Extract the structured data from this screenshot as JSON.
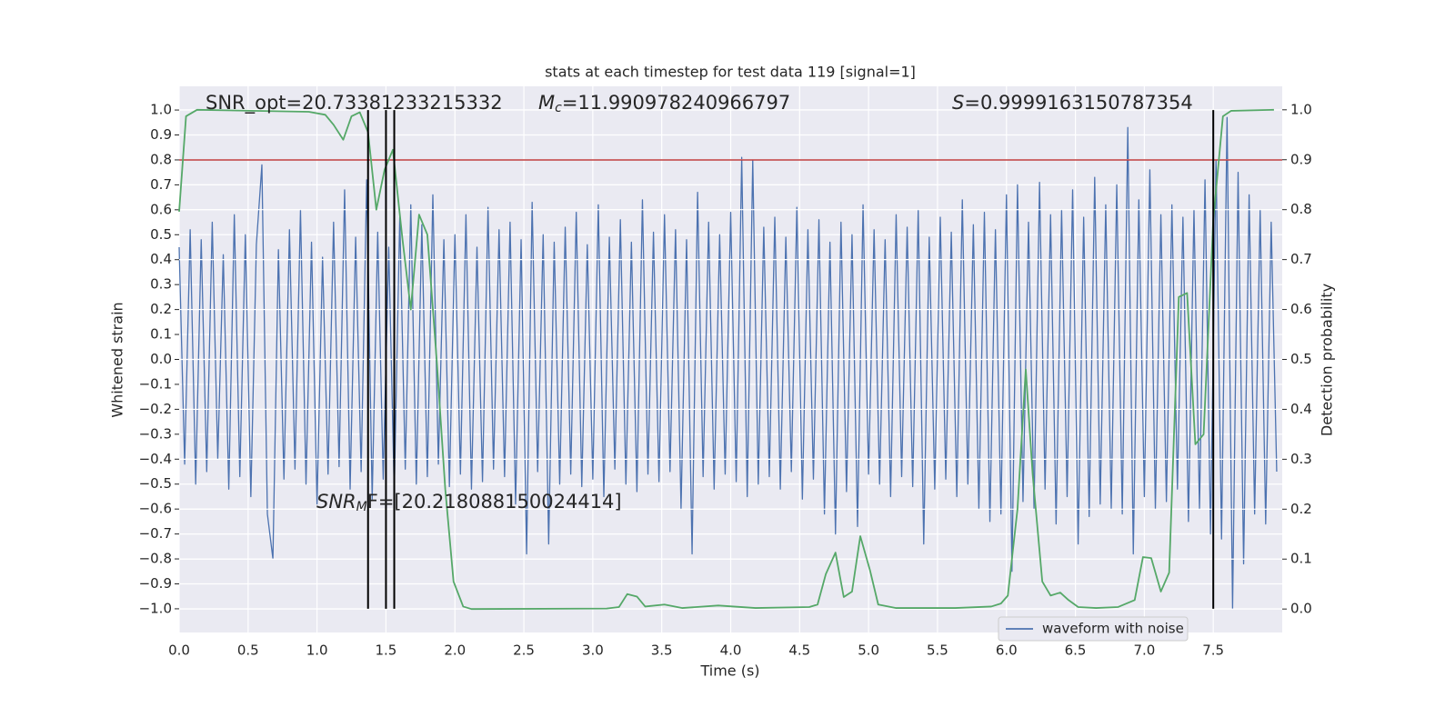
{
  "chart_data": {
    "type": "line",
    "title": "stats at each timestep for test data 119 [signal=1]",
    "xlabel": "Time (s)",
    "ylabel": "Whitened strain",
    "y2label": "Detection probability",
    "xlim": [
      0,
      8.0
    ],
    "ylim": [
      -1.095,
      1.095
    ],
    "y2lim": [
      -0.047,
      1.047
    ],
    "grid": true,
    "legend": "lower right",
    "xticks": [
      {
        "value": 0,
        "label": "0.0"
      },
      {
        "value": 0.5,
        "label": "0.5"
      },
      {
        "value": 1,
        "label": "1.0"
      },
      {
        "value": 1.5,
        "label": "1.5"
      },
      {
        "value": 2,
        "label": "2.0"
      },
      {
        "value": 2.5,
        "label": "2.5"
      },
      {
        "value": 3,
        "label": "3.0"
      },
      {
        "value": 3.5,
        "label": "3.5"
      },
      {
        "value": 4,
        "label": "4.0"
      },
      {
        "value": 4.5,
        "label": "4.5"
      },
      {
        "value": 5,
        "label": "5.0"
      },
      {
        "value": 5.5,
        "label": "5.5"
      },
      {
        "value": 6,
        "label": "6.0"
      },
      {
        "value": 6.5,
        "label": "6.5"
      },
      {
        "value": 7,
        "label": "7.0"
      },
      {
        "value": 7.5,
        "label": "7.5"
      }
    ],
    "yticks": [
      {
        "value": -1,
        "label": "−1.0"
      },
      {
        "value": -0.9,
        "label": "−0.9"
      },
      {
        "value": -0.8,
        "label": "−0.8"
      },
      {
        "value": -0.7,
        "label": "−0.7"
      },
      {
        "value": -0.6,
        "label": "−0.6"
      },
      {
        "value": -0.5,
        "label": "−0.5"
      },
      {
        "value": -0.4,
        "label": "−0.4"
      },
      {
        "value": -0.3,
        "label": "−0.3"
      },
      {
        "value": -0.2,
        "label": "−0.2"
      },
      {
        "value": -0.1,
        "label": "−0.1"
      },
      {
        "value": 0,
        "label": "0.0"
      },
      {
        "value": 0.1,
        "label": "0.1"
      },
      {
        "value": 0.2,
        "label": "0.2"
      },
      {
        "value": 0.3,
        "label": "0.3"
      },
      {
        "value": 0.4,
        "label": "0.4"
      },
      {
        "value": 0.5,
        "label": "0.5"
      },
      {
        "value": 0.6,
        "label": "0.6"
      },
      {
        "value": 0.7,
        "label": "0.7"
      },
      {
        "value": 0.8,
        "label": "0.8"
      },
      {
        "value": 0.9,
        "label": "0.9"
      },
      {
        "value": 1,
        "label": "1.0"
      }
    ],
    "y2ticks": [
      {
        "value": 0,
        "label": "0.0"
      },
      {
        "value": 0.1,
        "label": "0.1"
      },
      {
        "value": 0.2,
        "label": "0.2"
      },
      {
        "value": 0.3,
        "label": "0.3"
      },
      {
        "value": 0.4,
        "label": "0.4"
      },
      {
        "value": 0.5,
        "label": "0.5"
      },
      {
        "value": 0.6,
        "label": "0.6"
      },
      {
        "value": 0.7,
        "label": "0.7"
      },
      {
        "value": 0.8,
        "label": "0.8"
      },
      {
        "value": 0.9,
        "label": "0.9"
      },
      {
        "value": 1,
        "label": "1.0"
      }
    ],
    "hlines": [
      {
        "value": 0.8,
        "color": "#c03d3e"
      }
    ],
    "vlines": {
      "x": [
        1.37,
        1.5,
        1.56,
        7.5
      ],
      "range": [
        -1,
        1
      ],
      "color": "#000000"
    },
    "annotations": [
      {
        "text": "SNR_opt=20.73381233215332"
      },
      {
        "symbol": "M",
        "subscript": "c",
        "text": "=11.990978240966797"
      },
      {
        "symbol": "S",
        "text": "=0.9999163150787354"
      },
      {
        "symbol": "SNR",
        "subscript": "M",
        "text": "F=[20.218088150024414]"
      }
    ],
    "series": [
      {
        "name": "waveform with noise",
        "color": "#4c72b0",
        "axis": "y",
        "x": [
          0,
          0.04,
          0.08,
          0.12,
          0.16,
          0.2,
          0.24,
          0.28,
          0.32,
          0.36,
          0.4,
          0.44,
          0.48,
          0.52,
          0.56,
          0.6,
          0.64,
          0.68,
          0.72,
          0.76,
          0.8,
          0.84,
          0.88,
          0.92,
          0.96,
          1,
          1.04,
          1.08,
          1.12,
          1.16,
          1.2,
          1.24,
          1.28,
          1.32,
          1.36,
          1.4,
          1.44,
          1.48,
          1.52,
          1.56,
          1.6,
          1.64,
          1.68,
          1.72,
          1.76,
          1.8,
          1.84,
          1.88,
          1.92,
          1.96,
          2,
          2.04,
          2.08,
          2.12,
          2.16,
          2.2,
          2.24,
          2.28,
          2.32,
          2.36,
          2.4,
          2.44,
          2.48,
          2.52,
          2.56,
          2.6,
          2.64,
          2.68,
          2.72,
          2.76,
          2.8,
          2.84,
          2.88,
          2.92,
          2.96,
          3,
          3.04,
          3.08,
          3.12,
          3.16,
          3.2,
          3.24,
          3.28,
          3.32,
          3.36,
          3.4,
          3.44,
          3.48,
          3.52,
          3.56,
          3.6,
          3.64,
          3.68,
          3.72,
          3.76,
          3.8,
          3.84,
          3.88,
          3.92,
          3.96,
          4,
          4.04,
          4.08,
          4.12,
          4.16,
          4.2,
          4.24,
          4.28,
          4.32,
          4.36,
          4.4,
          4.44,
          4.48,
          4.52,
          4.56,
          4.6,
          4.64,
          4.68,
          4.72,
          4.76,
          4.8,
          4.84,
          4.88,
          4.92,
          4.96,
          5,
          5.04,
          5.08,
          5.12,
          5.16,
          5.2,
          5.24,
          5.28,
          5.32,
          5.36,
          5.4,
          5.44,
          5.48,
          5.52,
          5.56,
          5.6,
          5.64,
          5.68,
          5.72,
          5.76,
          5.8,
          5.84,
          5.88,
          5.92,
          5.96,
          6,
          6.04,
          6.08,
          6.12,
          6.16,
          6.2,
          6.24,
          6.28,
          6.32,
          6.36,
          6.4,
          6.44,
          6.48,
          6.52,
          6.56,
          6.6,
          6.64,
          6.68,
          6.72,
          6.76,
          6.8,
          6.84,
          6.88,
          6.92,
          6.96,
          7,
          7.04,
          7.08,
          7.12,
          7.16,
          7.2,
          7.24,
          7.28,
          7.32,
          7.36,
          7.4,
          7.44,
          7.48,
          7.52,
          7.56,
          7.6,
          7.64,
          7.68,
          7.72,
          7.76,
          7.8,
          7.84,
          7.88,
          7.92,
          7.96
        ],
        "values": [
          0.45,
          -0.42,
          0.52,
          -0.5,
          0.48,
          -0.45,
          0.55,
          -0.4,
          0.42,
          -0.52,
          0.58,
          -0.47,
          0.5,
          -0.55,
          0.46,
          0.78,
          -0.62,
          -0.8,
          0.44,
          -0.48,
          0.52,
          -0.44,
          0.6,
          -0.5,
          0.47,
          -0.58,
          0.41,
          -0.46,
          0.55,
          -0.43,
          0.68,
          -0.52,
          0.49,
          -0.45,
          0.72,
          -0.56,
          0.51,
          -0.48,
          0.45,
          -0.53,
          0.57,
          -0.44,
          0.62,
          -0.5,
          0.54,
          -0.47,
          0.66,
          -0.42,
          0.48,
          -0.51,
          0.5,
          -0.46,
          0.58,
          -0.52,
          0.45,
          -0.49,
          0.61,
          -0.44,
          0.52,
          -0.47,
          0.55,
          -0.58,
          0.48,
          -0.78,
          0.63,
          -0.45,
          0.5,
          -0.74,
          0.47,
          -0.5,
          0.53,
          -0.46,
          0.59,
          -0.51,
          0.46,
          -0.48,
          0.62,
          -0.55,
          0.49,
          -0.44,
          0.56,
          -0.5,
          0.47,
          -0.53,
          0.64,
          -0.46,
          0.51,
          -0.49,
          0.58,
          -0.45,
          0.52,
          -0.6,
          0.48,
          -0.78,
          0.67,
          -0.47,
          0.55,
          -0.52,
          0.5,
          -0.46,
          0.59,
          -0.49,
          0.81,
          -0.55,
          0.8,
          -0.5,
          0.53,
          -0.47,
          0.57,
          -0.52,
          0.49,
          -0.45,
          0.61,
          -0.56,
          0.52,
          -0.48,
          0.56,
          -0.62,
          0.47,
          -0.7,
          0.55,
          -0.53,
          0.5,
          -0.67,
          0.62,
          -0.46,
          0.52,
          -0.5,
          0.48,
          -0.55,
          0.58,
          -0.47,
          0.53,
          -0.51,
          0.6,
          -0.74,
          0.49,
          -0.52,
          0.57,
          -0.48,
          0.51,
          -0.55,
          0.64,
          -0.5,
          0.54,
          -0.6,
          0.59,
          -0.65,
          0.52,
          -0.62,
          0.66,
          -0.85,
          0.7,
          -0.57,
          0.55,
          -0.6,
          0.71,
          -0.52,
          0.58,
          -0.66,
          0.6,
          -0.55,
          0.68,
          -0.74,
          0.57,
          -0.63,
          0.73,
          -0.58,
          0.62,
          -0.6,
          0.7,
          -0.62,
          0.93,
          -0.78,
          0.64,
          -0.55,
          0.76,
          -0.6,
          0.58,
          -0.57,
          0.62,
          -0.52,
          0.57,
          -0.65,
          0.6,
          -0.6,
          0.72,
          -0.7,
          0.8,
          -0.72,
          0.97,
          -1.0,
          0.75,
          -0.82,
          0.66,
          -0.62,
          0.6,
          -0.66,
          0.55,
          -0.45
        ]
      },
      {
        "color": "#55a868",
        "axis": "y2",
        "x": [
          0,
          0.05,
          0.13,
          0.94,
          1.06,
          1.12,
          1.19,
          1.25,
          1.31,
          1.37,
          1.43,
          1.49,
          1.55,
          1.62,
          1.68,
          1.74,
          1.8,
          1.87,
          1.93,
          1.99,
          2.06,
          2.12,
          3.1,
          3.19,
          3.25,
          3.32,
          3.38,
          3.52,
          3.65,
          3.91,
          4.18,
          4.57,
          4.63,
          4.69,
          4.76,
          4.82,
          4.88,
          4.94,
          5.01,
          5.07,
          5.2,
          5.63,
          5.89,
          5.96,
          6.01,
          6.08,
          6.14,
          6.19,
          6.26,
          6.32,
          6.39,
          6.45,
          6.52,
          6.65,
          6.81,
          6.93,
          6.99,
          7.05,
          7.12,
          7.18,
          7.25,
          7.31,
          7.37,
          7.43,
          7.5,
          7.57,
          7.63,
          7.94
        ],
        "values": [
          0.796,
          0.987,
          1.0,
          0.996,
          0.99,
          0.97,
          0.94,
          0.987,
          0.995,
          0.955,
          0.8,
          0.88,
          0.92,
          0.74,
          0.6,
          0.79,
          0.75,
          0.49,
          0.24,
          0.055,
          0.005,
          0.0,
          0.001,
          0.004,
          0.03,
          0.025,
          0.005,
          0.009,
          0.002,
          0.007,
          0.002,
          0.004,
          0.009,
          0.07,
          0.113,
          0.024,
          0.035,
          0.146,
          0.078,
          0.009,
          0.002,
          0.002,
          0.005,
          0.011,
          0.027,
          0.2,
          0.48,
          0.27,
          0.055,
          0.027,
          0.033,
          0.018,
          0.004,
          0.002,
          0.004,
          0.018,
          0.104,
          0.102,
          0.035,
          0.073,
          0.625,
          0.633,
          0.33,
          0.35,
          0.78,
          0.987,
          0.998,
          1.0
        ]
      }
    ]
  }
}
